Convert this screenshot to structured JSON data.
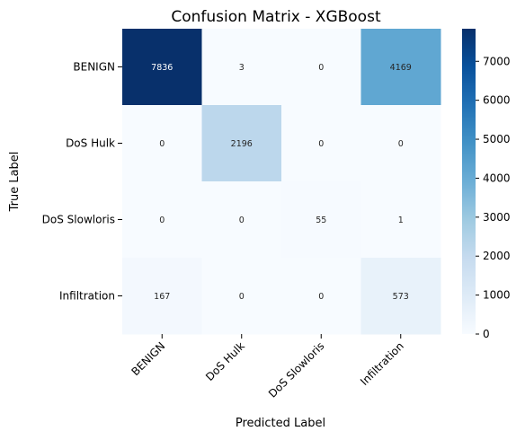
{
  "chart_data": {
    "type": "heatmap",
    "title": "Confusion Matrix - XGBoost",
    "xlabel": "Predicted Label",
    "ylabel": "True Label",
    "x_categories": [
      "BENIGN",
      "DoS Hulk",
      "DoS Slowloris",
      "Infiltration"
    ],
    "y_categories": [
      "BENIGN",
      "DoS Hulk",
      "DoS Slowloris",
      "Infiltration"
    ],
    "values": [
      [
        7836,
        3,
        0,
        4169
      ],
      [
        0,
        2196,
        0,
        0
      ],
      [
        0,
        0,
        55,
        1
      ],
      [
        167,
        0,
        0,
        573
      ]
    ],
    "colormap": "Blues",
    "vmin": 0,
    "vmax": 7836,
    "colorbar_ticks": [
      0,
      1000,
      2000,
      3000,
      4000,
      5000,
      6000,
      7000
    ]
  }
}
